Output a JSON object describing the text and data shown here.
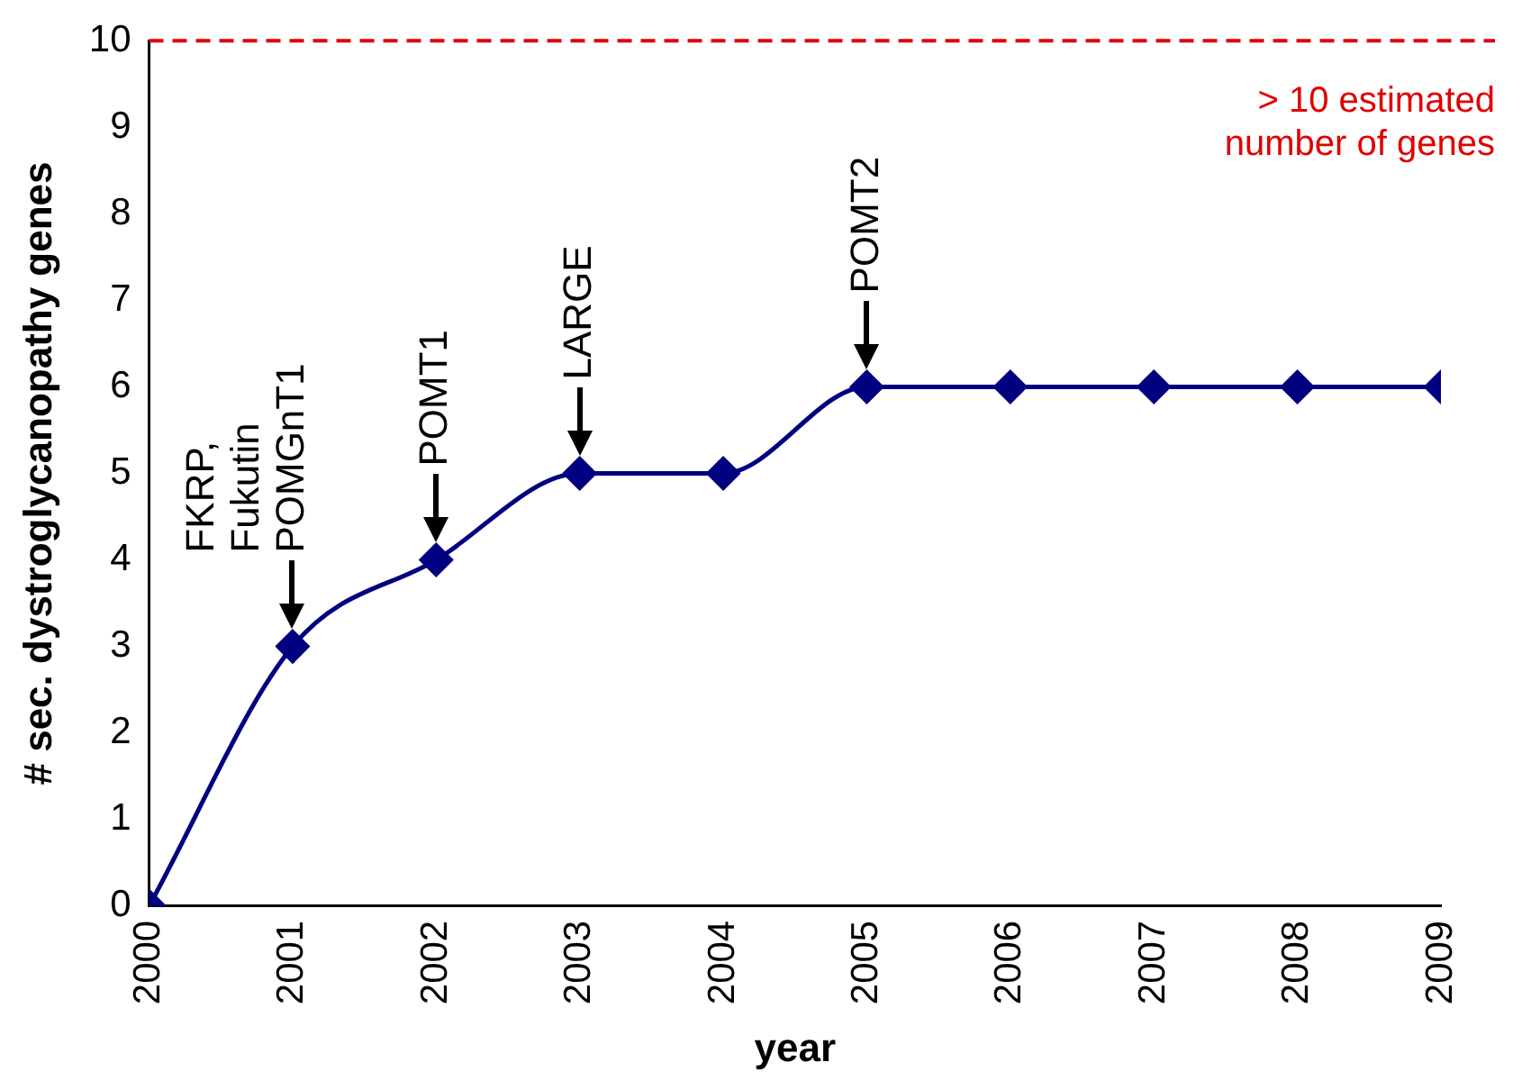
{
  "chart_data": {
    "type": "line",
    "xlabel": "year",
    "ylabel": "# sec. dystroglycanopathy genes",
    "x": [
      2000,
      2001,
      2002,
      2003,
      2004,
      2005,
      2006,
      2007,
      2008,
      2009
    ],
    "series": [
      {
        "color": "#000080",
        "values": [
          0,
          3,
          4,
          5,
          5,
          6,
          6,
          6,
          6,
          6
        ]
      }
    ],
    "xlim": [
      2000,
      2009
    ],
    "xticks": [
      2000,
      2001,
      2002,
      2003,
      2004,
      2005,
      2006,
      2007,
      2008,
      2009
    ],
    "ylim": [
      0,
      10
    ],
    "yticks": [
      0,
      1,
      2,
      3,
      4,
      5,
      6,
      7,
      8,
      9,
      10
    ],
    "grid": false,
    "legend": false,
    "marker": "diamond",
    "line_style": "solid",
    "ref_lines": [
      {
        "axis": "y",
        "value": 10,
        "label": "> 10 estimated\nnumber of genes",
        "color": "#e00000",
        "line_style": "dashed"
      }
    ],
    "annotations": [
      {
        "text": "FKRP,\nFukutin\nPOMGnT1",
        "x": 2001,
        "y": 3
      },
      {
        "text": "POMT1",
        "x": 2002,
        "y": 4
      },
      {
        "text": "LARGE",
        "x": 2003,
        "y": 5
      },
      {
        "text": "POMT2",
        "x": 2005,
        "y": 6
      }
    ]
  }
}
